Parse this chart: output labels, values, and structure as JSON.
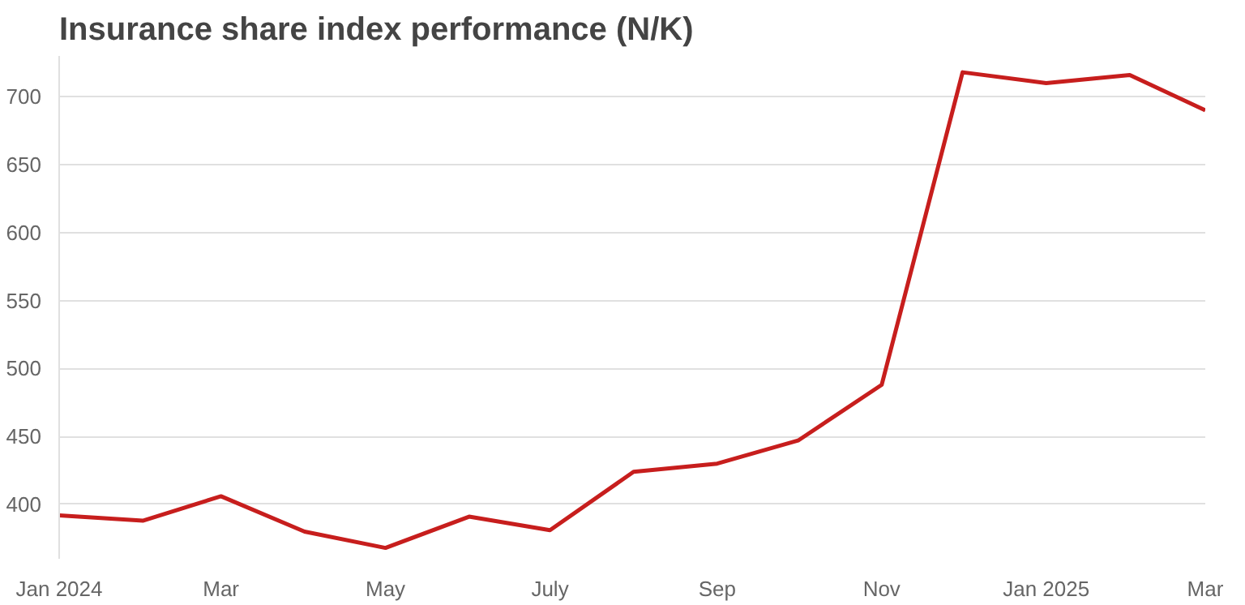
{
  "chart_data": {
    "type": "line",
    "title": "Insurance share index performance (N/K)",
    "x": [
      "2024-01",
      "2024-02",
      "2024-03",
      "2024-04",
      "2024-05",
      "2024-06",
      "2024-07",
      "2024-08",
      "2024-09",
      "2024-10",
      "2024-11",
      "2024-12",
      "2025-01",
      "2025-02",
      "2025-03"
    ],
    "series": [
      {
        "color": "#c71e1d",
        "values": [
          392,
          388,
          406,
          380,
          368,
          391,
          381,
          424,
          430,
          447,
          488,
          718,
          710,
          716,
          690
        ]
      }
    ],
    "xlim": [
      "2024-01",
      "2025-03"
    ],
    "xticks": [
      {
        "value": "2024-01",
        "label": "Jan 2024"
      },
      {
        "value": "2024-03",
        "label": "Mar"
      },
      {
        "value": "2024-05",
        "label": "May"
      },
      {
        "value": "2024-07",
        "label": "July"
      },
      {
        "value": "2024-09",
        "label": "Sep"
      },
      {
        "value": "2024-11",
        "label": "Nov"
      },
      {
        "value": "2025-01",
        "label": "Jan 2025"
      },
      {
        "value": "2025-03",
        "label": "Mar"
      }
    ],
    "ylim": [
      360,
      730
    ],
    "yticks": [
      400,
      450,
      500,
      550,
      600,
      650,
      700
    ],
    "grid": "y",
    "marker": "none",
    "line_style": "solid"
  }
}
